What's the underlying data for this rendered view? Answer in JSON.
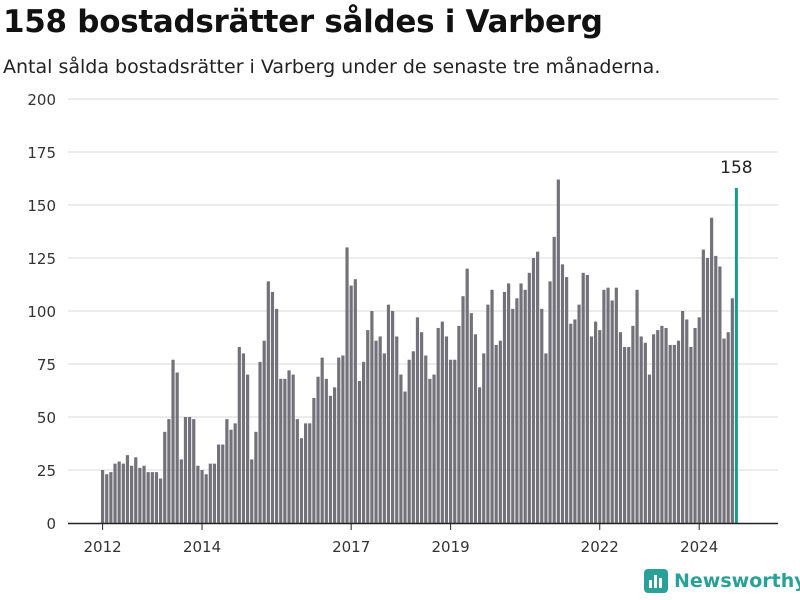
{
  "header": {
    "title": "158 bostadsrätter såldes i Varberg",
    "subtitle": "Antal sålda bostadsrätter i Varberg under de senaste tre månaderna."
  },
  "brand": {
    "name": "Newsworthy"
  },
  "colors": {
    "bar": "#73727a",
    "highlight": "#1a9a8c",
    "grid": "#d9d9d9",
    "axis": "#222222",
    "brand": "#2aa198"
  },
  "chart_data": {
    "type": "bar",
    "title": "",
    "xlabel": "",
    "ylabel": "",
    "ylim": [
      0,
      200
    ],
    "yticks": [
      0,
      25,
      50,
      75,
      100,
      125,
      150,
      175,
      200
    ],
    "xtick_labels": [
      "2012",
      "2014",
      "2017",
      "2019",
      "2022",
      "2024"
    ],
    "x_start": "2012-01",
    "x_end": "2024-12",
    "highlight": {
      "period": "2024-12",
      "value": 158,
      "label": "158"
    },
    "values": [
      25,
      23,
      24,
      28,
      29,
      28,
      32,
      27,
      31,
      26,
      27,
      24,
      24,
      24,
      21,
      43,
      49,
      77,
      71,
      30,
      50,
      50,
      49,
      27,
      25,
      23,
      28,
      28,
      37,
      37,
      49,
      44,
      47,
      83,
      80,
      70,
      30,
      43,
      76,
      86,
      114,
      109,
      101,
      68,
      68,
      72,
      70,
      49,
      40,
      47,
      47,
      59,
      69,
      78,
      68,
      60,
      64,
      78,
      79,
      130,
      112,
      115,
      67,
      76,
      91,
      100,
      86,
      88,
      80,
      103,
      100,
      88,
      70,
      62,
      77,
      81,
      97,
      90,
      79,
      68,
      70,
      92,
      95,
      88,
      77,
      77,
      93,
      107,
      120,
      99,
      89,
      64,
      80,
      103,
      110,
      84,
      86,
      109,
      113,
      101,
      106,
      113,
      110,
      118,
      125,
      128,
      101,
      80,
      114,
      135,
      162,
      122,
      116,
      94,
      96,
      103,
      118,
      117,
      88,
      95,
      91,
      110,
      111,
      105,
      111,
      90,
      83,
      83,
      93,
      110,
      88,
      85,
      70,
      89,
      91,
      93,
      92,
      84,
      84,
      86,
      100,
      96,
      83,
      92,
      97,
      129,
      125,
      144,
      126,
      121,
      87,
      90,
      106,
      158
    ]
  }
}
